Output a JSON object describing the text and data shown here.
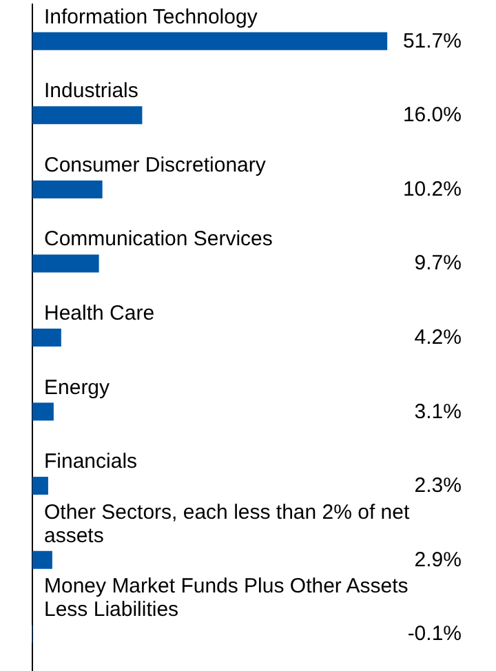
{
  "chart_data": {
    "type": "bar",
    "orientation": "horizontal",
    "categories": [
      "Information Technology",
      "Industrials",
      "Consumer Discretionary",
      "Communication Services",
      "Health Care",
      "Energy",
      "Financials",
      "Other Sectors, each less than 2% of net assets",
      "Money Market Funds Plus Other Assets Less Liabilities"
    ],
    "values": [
      51.7,
      16.0,
      10.2,
      9.7,
      4.2,
      3.1,
      2.3,
      2.9,
      -0.1
    ],
    "value_labels": [
      "51.7%",
      "16.0%",
      "10.2%",
      "9.7%",
      "4.2%",
      "3.1%",
      "2.3%",
      "2.9%",
      "-0.1%"
    ],
    "color": "#0057a8"
  }
}
